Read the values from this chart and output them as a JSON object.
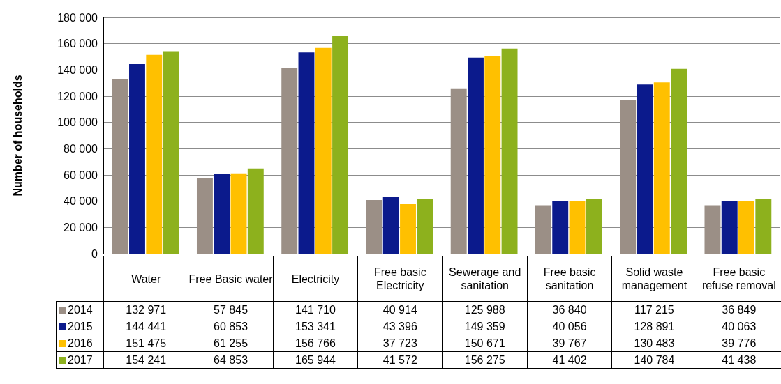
{
  "chart_data": {
    "type": "bar",
    "ylabel": "Number of households",
    "categories": [
      "Water",
      "Free Basic water",
      "Electricity",
      "Free basic Electricity",
      "Sewerage and sanitation",
      "Free basic sanitation",
      "Solid waste management",
      "Free basic refuse removal"
    ],
    "series": [
      {
        "name": "2014",
        "color": "#9b8f86",
        "values": [
          132971,
          57845,
          141710,
          40914,
          125988,
          36840,
          117215,
          36849
        ],
        "value_labels": [
          "132 971",
          "57 845",
          "141 710",
          "40 914",
          "125 988",
          "36 840",
          "117 215",
          "36 849"
        ]
      },
      {
        "name": "2015",
        "color": "#0b1a8c",
        "values": [
          144441,
          60853,
          153341,
          43396,
          149359,
          40056,
          128891,
          40063
        ],
        "value_labels": [
          "144 441",
          "60 853",
          "153 341",
          "43 396",
          "149 359",
          "40 056",
          "128 891",
          "40 063"
        ]
      },
      {
        "name": "2016",
        "color": "#ffc000",
        "values": [
          151475,
          61255,
          156766,
          37723,
          150671,
          39767,
          130483,
          39776
        ],
        "value_labels": [
          "151 475",
          "61 255",
          "156 766",
          "37 723",
          "150 671",
          "39 767",
          "130 483",
          "39 776"
        ]
      },
      {
        "name": "2017",
        "color": "#8db11d",
        "values": [
          154241,
          64853,
          165944,
          41572,
          156275,
          41402,
          140784,
          41438
        ],
        "value_labels": [
          "154 241",
          "64 853",
          "165 944",
          "41 572",
          "156 275",
          "41 402",
          "140 784",
          "41 438"
        ]
      }
    ],
    "ylim": [
      0,
      180000
    ],
    "yticks": [
      0,
      {
        "value": 20000,
        "label": "20 000"
      },
      {
        "value": 40000,
        "label": "40 000"
      },
      {
        "value": 60000,
        "label": "60 000"
      },
      {
        "value": 80000,
        "label": "80 000"
      },
      {
        "value": 100000,
        "label": "100 000"
      },
      {
        "value": 120000,
        "label": "120 000"
      },
      {
        "value": 140000,
        "label": "140 000"
      },
      {
        "value": 160000,
        "label": "160 000"
      },
      {
        "value": 180000,
        "label": "180 000"
      }
    ],
    "grid": "y",
    "legend": "bottom"
  }
}
